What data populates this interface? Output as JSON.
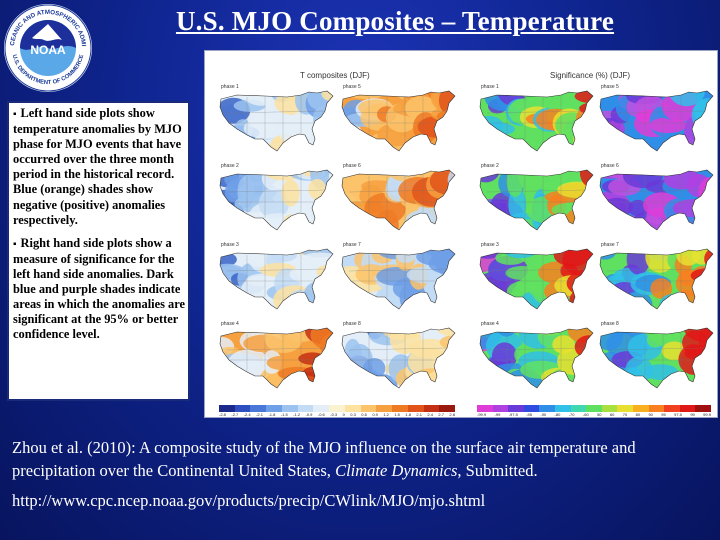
{
  "slide": {
    "title": "U.S. MJO Composites – Temperature",
    "logo": {
      "center_text": "NOAA",
      "ring_top_text": "NATIONAL OCEANIC AND ATMOSPHERIC ADMINISTRATION",
      "ring_bottom_text": "U.S. DEPARTMENT OF COMMERCE"
    },
    "notes": [
      "Left hand side plots show temperature anomalies by MJO phase for MJO events that have occurred over the three month period in the historical record. Blue (orange) shades show negative (positive) anomalies respectively.",
      "Right hand side plots show a measure of significance for the left hand side anomalies. Dark blue and purple shades indicate areas in which the anomalies are significant at the 95% or better confidence level."
    ],
    "bullet_glyph": "▪",
    "citation": {
      "text": "Zhou et al. (2010): A composite study of the MJO influence on the surface air temperature and precipitation over the Continental United States, ",
      "journal": "Climate Dynamics",
      "suffix": ", Submitted."
    },
    "url": "http://www.cpc.ncep.noaa.gov/products/precip/CWlink/MJO/mjo.shtml"
  },
  "figure": {
    "left_title": "T composites (DJF)",
    "right_title": "Significance (%) (DJF)",
    "left_panels": [
      {
        "label": "phase 1",
        "palette": "temp_cool"
      },
      {
        "label": "phase 5",
        "palette": "temp_warm_east"
      },
      {
        "label": "phase 2",
        "palette": "temp_cool"
      },
      {
        "label": "phase 6",
        "palette": "temp_warm"
      },
      {
        "label": "phase 3",
        "palette": "temp_cool"
      },
      {
        "label": "phase 7",
        "palette": "temp_mixed"
      },
      {
        "label": "phase 4",
        "palette": "temp_warm_east"
      },
      {
        "label": "phase 8",
        "palette": "temp_cool_west"
      }
    ],
    "right_panels": [
      {
        "label": "phase 1",
        "palette": "sig"
      },
      {
        "label": "phase 5",
        "palette": "sig_purple"
      },
      {
        "label": "phase 2",
        "palette": "sig"
      },
      {
        "label": "phase 6",
        "palette": "sig_purple"
      },
      {
        "label": "phase 3",
        "palette": "sig"
      },
      {
        "label": "phase 7",
        "palette": "sig"
      },
      {
        "label": "phase 4",
        "palette": "sig"
      },
      {
        "label": "phase 8",
        "palette": "sig"
      }
    ],
    "left_colorbar": {
      "colors": [
        "#1b2a8a",
        "#2e4fc0",
        "#4a78d8",
        "#6f9fe6",
        "#9cc3f0",
        "#c3dcf5",
        "#e4eef8",
        "#fbf3d0",
        "#fde2a0",
        "#fbc36a",
        "#f6a040",
        "#ef7a24",
        "#e0541a",
        "#c43014",
        "#9a1a10"
      ],
      "ticks": [
        "-2.8",
        "-2.7",
        "-2.4",
        "-2.1",
        "-1.8",
        "-1.5",
        "-1.2",
        "-0.9",
        "-0.6",
        "-0.3",
        "0",
        "0.3",
        "0.6",
        "0.9",
        "1.2",
        "1.5",
        "1.8",
        "2.1",
        "2.4",
        "2.7",
        "2.8"
      ]
    },
    "right_colorbar": {
      "colors": [
        "#e03cd8",
        "#b040e0",
        "#6a3ad8",
        "#2f4be0",
        "#2f8fe8",
        "#30c0e8",
        "#40d8b0",
        "#60e060",
        "#a8e040",
        "#e8e030",
        "#f8b020",
        "#f88020",
        "#f04020",
        "#e01818",
        "#a01010"
      ],
      "ticks": [
        "-99.9",
        "-99",
        "-97.5",
        "-95",
        "-90",
        "-80",
        "-70",
        "-60",
        "50",
        "60",
        "70",
        "80",
        "90",
        "95",
        "97.5",
        "99",
        "99.9"
      ]
    }
  }
}
